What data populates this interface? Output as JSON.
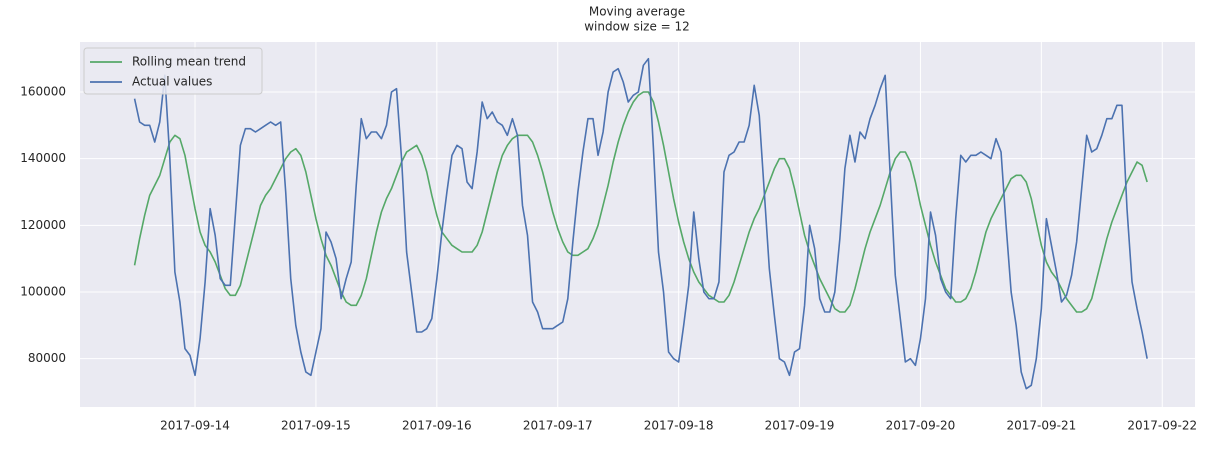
{
  "chart_data": {
    "type": "line",
    "title": "Moving average",
    "subtitle": "window size = 12",
    "x": [
      "2017-09-13 12:00",
      "2017-09-13 13:00",
      "2017-09-13 14:00",
      "2017-09-13 15:00",
      "2017-09-13 16:00",
      "2017-09-13 17:00",
      "2017-09-13 18:00",
      "2017-09-13 19:00",
      "2017-09-13 20:00",
      "2017-09-13 21:00",
      "2017-09-13 22:00",
      "2017-09-13 23:00",
      "2017-09-14 00:00",
      "2017-09-14 01:00",
      "2017-09-14 02:00",
      "2017-09-14 03:00",
      "2017-09-14 04:00",
      "2017-09-14 05:00",
      "2017-09-14 06:00",
      "2017-09-14 07:00",
      "2017-09-14 08:00",
      "2017-09-14 09:00",
      "2017-09-14 10:00",
      "2017-09-14 11:00",
      "2017-09-14 12:00",
      "2017-09-14 13:00",
      "2017-09-14 14:00",
      "2017-09-14 15:00",
      "2017-09-14 16:00",
      "2017-09-14 17:00",
      "2017-09-14 18:00",
      "2017-09-14 19:00",
      "2017-09-14 20:00",
      "2017-09-14 21:00",
      "2017-09-14 22:00",
      "2017-09-14 23:00",
      "2017-09-15 00:00",
      "2017-09-15 01:00",
      "2017-09-15 02:00",
      "2017-09-15 03:00",
      "2017-09-15 04:00",
      "2017-09-15 05:00",
      "2017-09-15 06:00",
      "2017-09-15 07:00",
      "2017-09-15 08:00",
      "2017-09-15 09:00",
      "2017-09-15 10:00",
      "2017-09-15 11:00",
      "2017-09-15 12:00",
      "2017-09-15 13:00",
      "2017-09-15 14:00",
      "2017-09-15 15:00",
      "2017-09-15 16:00",
      "2017-09-15 17:00",
      "2017-09-15 18:00",
      "2017-09-15 19:00",
      "2017-09-15 20:00",
      "2017-09-15 21:00",
      "2017-09-15 22:00",
      "2017-09-15 23:00",
      "2017-09-16 00:00",
      "2017-09-16 01:00",
      "2017-09-16 02:00",
      "2017-09-16 03:00",
      "2017-09-16 04:00",
      "2017-09-16 05:00",
      "2017-09-16 06:00",
      "2017-09-16 07:00",
      "2017-09-16 08:00",
      "2017-09-16 09:00",
      "2017-09-16 10:00",
      "2017-09-16 11:00",
      "2017-09-16 12:00",
      "2017-09-16 13:00",
      "2017-09-16 14:00",
      "2017-09-16 15:00",
      "2017-09-16 16:00",
      "2017-09-16 17:00",
      "2017-09-16 18:00",
      "2017-09-16 19:00",
      "2017-09-16 20:00",
      "2017-09-16 21:00",
      "2017-09-16 22:00",
      "2017-09-16 23:00",
      "2017-09-17 00:00",
      "2017-09-17 01:00",
      "2017-09-17 02:00",
      "2017-09-17 03:00",
      "2017-09-17 04:00",
      "2017-09-17 05:00",
      "2017-09-17 06:00",
      "2017-09-17 07:00",
      "2017-09-17 08:00",
      "2017-09-17 09:00",
      "2017-09-17 10:00",
      "2017-09-17 11:00",
      "2017-09-17 12:00",
      "2017-09-17 13:00",
      "2017-09-17 14:00",
      "2017-09-17 15:00",
      "2017-09-17 16:00",
      "2017-09-17 17:00",
      "2017-09-17 18:00",
      "2017-09-17 19:00",
      "2017-09-17 20:00",
      "2017-09-17 21:00",
      "2017-09-17 22:00",
      "2017-09-17 23:00",
      "2017-09-18 00:00",
      "2017-09-18 01:00",
      "2017-09-18 02:00",
      "2017-09-18 03:00",
      "2017-09-18 04:00",
      "2017-09-18 05:00",
      "2017-09-18 06:00",
      "2017-09-18 07:00",
      "2017-09-18 08:00",
      "2017-09-18 09:00",
      "2017-09-18 10:00",
      "2017-09-18 11:00",
      "2017-09-18 12:00",
      "2017-09-18 13:00",
      "2017-09-18 14:00",
      "2017-09-18 15:00",
      "2017-09-18 16:00",
      "2017-09-18 17:00",
      "2017-09-18 18:00",
      "2017-09-18 19:00",
      "2017-09-18 20:00",
      "2017-09-18 21:00",
      "2017-09-18 22:00",
      "2017-09-18 23:00",
      "2017-09-19 00:00",
      "2017-09-19 01:00",
      "2017-09-19 02:00",
      "2017-09-19 03:00",
      "2017-09-19 04:00",
      "2017-09-19 05:00",
      "2017-09-19 06:00",
      "2017-09-19 07:00",
      "2017-09-19 08:00",
      "2017-09-19 09:00",
      "2017-09-19 10:00",
      "2017-09-19 11:00",
      "2017-09-19 12:00",
      "2017-09-19 13:00",
      "2017-09-19 14:00",
      "2017-09-19 15:00",
      "2017-09-19 16:00",
      "2017-09-19 17:00",
      "2017-09-19 18:00",
      "2017-09-19 19:00",
      "2017-09-19 20:00",
      "2017-09-19 21:00",
      "2017-09-19 22:00",
      "2017-09-19 23:00",
      "2017-09-20 00:00",
      "2017-09-20 01:00",
      "2017-09-20 02:00",
      "2017-09-20 03:00",
      "2017-09-20 04:00",
      "2017-09-20 05:00",
      "2017-09-20 06:00",
      "2017-09-20 07:00",
      "2017-09-20 08:00",
      "2017-09-20 09:00",
      "2017-09-20 10:00",
      "2017-09-20 11:00",
      "2017-09-20 12:00",
      "2017-09-20 13:00",
      "2017-09-20 14:00",
      "2017-09-20 15:00",
      "2017-09-20 16:00",
      "2017-09-20 17:00",
      "2017-09-20 18:00",
      "2017-09-20 19:00",
      "2017-09-20 20:00",
      "2017-09-20 21:00",
      "2017-09-20 22:00",
      "2017-09-20 23:00",
      "2017-09-21 00:00",
      "2017-09-21 01:00",
      "2017-09-21 02:00",
      "2017-09-21 03:00",
      "2017-09-21 04:00",
      "2017-09-21 05:00",
      "2017-09-21 06:00",
      "2017-09-21 07:00",
      "2017-09-21 08:00",
      "2017-09-21 09:00",
      "2017-09-21 10:00",
      "2017-09-21 11:00",
      "2017-09-21 12:00",
      "2017-09-21 13:00",
      "2017-09-21 14:00",
      "2017-09-21 15:00",
      "2017-09-21 16:00",
      "2017-09-21 17:00",
      "2017-09-21 18:00",
      "2017-09-21 19:00",
      "2017-09-21 20:00",
      "2017-09-21 21:00"
    ],
    "series": [
      {
        "name": "Rolling mean trend",
        "color": "#55a868",
        "values": [
          108000,
          116000,
          123000,
          129000,
          132000,
          135000,
          140000,
          145000,
          147000,
          146000,
          141000,
          133000,
          125000,
          118000,
          114000,
          112000,
          109000,
          105000,
          101000,
          99000,
          99000,
          102000,
          108000,
          114000,
          120000,
          126000,
          129000,
          131000,
          134000,
          137000,
          140000,
          142000,
          143000,
          141000,
          136000,
          129000,
          122000,
          116000,
          111000,
          108000,
          104000,
          100000,
          97000,
          96000,
          96000,
          99000,
          104000,
          111000,
          118000,
          124000,
          128000,
          131000,
          135000,
          139000,
          142000,
          143000,
          144000,
          141000,
          136000,
          129000,
          123000,
          118000,
          116000,
          114000,
          113000,
          112000,
          112000,
          112000,
          114000,
          118000,
          124000,
          130000,
          136000,
          141000,
          144000,
          146000,
          147000,
          147000,
          147000,
          145000,
          141000,
          136000,
          130000,
          124000,
          119000,
          115000,
          112000,
          111000,
          111000,
          112000,
          113000,
          116000,
          120000,
          126000,
          132000,
          139000,
          145000,
          150000,
          154000,
          157000,
          159000,
          160000,
          160000,
          157000,
          151000,
          144000,
          136000,
          128000,
          121000,
          115000,
          110000,
          106000,
          103000,
          101000,
          99000,
          98000,
          97000,
          97000,
          99000,
          103000,
          108000,
          113000,
          118000,
          122000,
          125000,
          129000,
          133000,
          137000,
          140000,
          140000,
          137000,
          131000,
          124000,
          117000,
          112000,
          108000,
          104000,
          101000,
          98000,
          95000,
          94000,
          94000,
          96000,
          101000,
          107000,
          113000,
          118000,
          122000,
          126000,
          131000,
          136000,
          140000,
          142000,
          142000,
          139000,
          133000,
          126000,
          120000,
          114000,
          109000,
          105000,
          101000,
          99000,
          97000,
          97000,
          98000,
          101000,
          106000,
          112000,
          118000,
          122000,
          125000,
          128000,
          131000,
          134000,
          135000,
          135000,
          133000,
          128000,
          121000,
          114000,
          109000,
          106000,
          104000,
          101000,
          98000,
          96000,
          94000,
          94000,
          95000,
          98000,
          104000,
          110000,
          116000,
          121000,
          125000,
          129000,
          133000,
          136000,
          139000,
          138000,
          133000
        ]
      },
      {
        "name": "Actual values",
        "color": "#4c72b0",
        "values": [
          158000,
          151000,
          150000,
          150000,
          145000,
          151000,
          165000,
          140000,
          106000,
          97000,
          83000,
          81000,
          75000,
          86000,
          103000,
          125000,
          117000,
          104000,
          102000,
          102000,
          123000,
          144000,
          149000,
          149000,
          148000,
          149000,
          150000,
          151000,
          150000,
          151000,
          130000,
          104000,
          90000,
          82000,
          76000,
          75000,
          82000,
          89000,
          118000,
          115000,
          110000,
          98000,
          104000,
          109000,
          132000,
          152000,
          146000,
          148000,
          148000,
          146000,
          150000,
          160000,
          161000,
          140000,
          112000,
          100000,
          88000,
          88000,
          89000,
          92000,
          104000,
          118000,
          130000,
          141000,
          144000,
          143000,
          133000,
          131000,
          142000,
          157000,
          152000,
          154000,
          151000,
          150000,
          147000,
          152000,
          147000,
          126000,
          117000,
          97000,
          94000,
          89000,
          89000,
          89000,
          90000,
          91000,
          98000,
          115000,
          130000,
          142000,
          152000,
          152000,
          141000,
          148000,
          160000,
          166000,
          167000,
          163000,
          157000,
          159000,
          160000,
          168000,
          170000,
          143000,
          112000,
          100000,
          82000,
          80000,
          79000,
          90000,
          102000,
          124000,
          110000,
          100000,
          98000,
          98000,
          103000,
          136000,
          141000,
          142000,
          145000,
          145000,
          150000,
          162000,
          153000,
          130000,
          107000,
          93000,
          80000,
          79000,
          75000,
          82000,
          83000,
          96000,
          120000,
          113000,
          98000,
          94000,
          94000,
          100000,
          116000,
          137000,
          147000,
          139000,
          148000,
          146000,
          152000,
          156000,
          161000,
          165000,
          135000,
          105000,
          92000,
          79000,
          80000,
          78000,
          86000,
          98000,
          124000,
          117000,
          104000,
          100000,
          98000,
          122000,
          141000,
          139000,
          141000,
          141000,
          142000,
          141000,
          140000,
          146000,
          142000,
          120000,
          100000,
          90000,
          76000,
          71000,
          72000,
          80000,
          95000,
          122000,
          114000,
          106000,
          97000,
          99000,
          105000,
          115000,
          131000,
          147000,
          142000,
          143000,
          147000,
          152000,
          152000,
          156000,
          156000,
          125000,
          103000,
          95000,
          88000,
          80000
        ]
      }
    ],
    "xlim": [
      "2017-09-13 01:10",
      "2017-09-22 06:30"
    ],
    "xticks": [
      "2017-09-14",
      "2017-09-15",
      "2017-09-16",
      "2017-09-17",
      "2017-09-18",
      "2017-09-19",
      "2017-09-20",
      "2017-09-21",
      "2017-09-22"
    ],
    "ylim": [
      65500,
      175000
    ],
    "yticks": [
      80000,
      100000,
      120000,
      140000,
      160000
    ],
    "grid": true,
    "legend": "upper-left"
  }
}
